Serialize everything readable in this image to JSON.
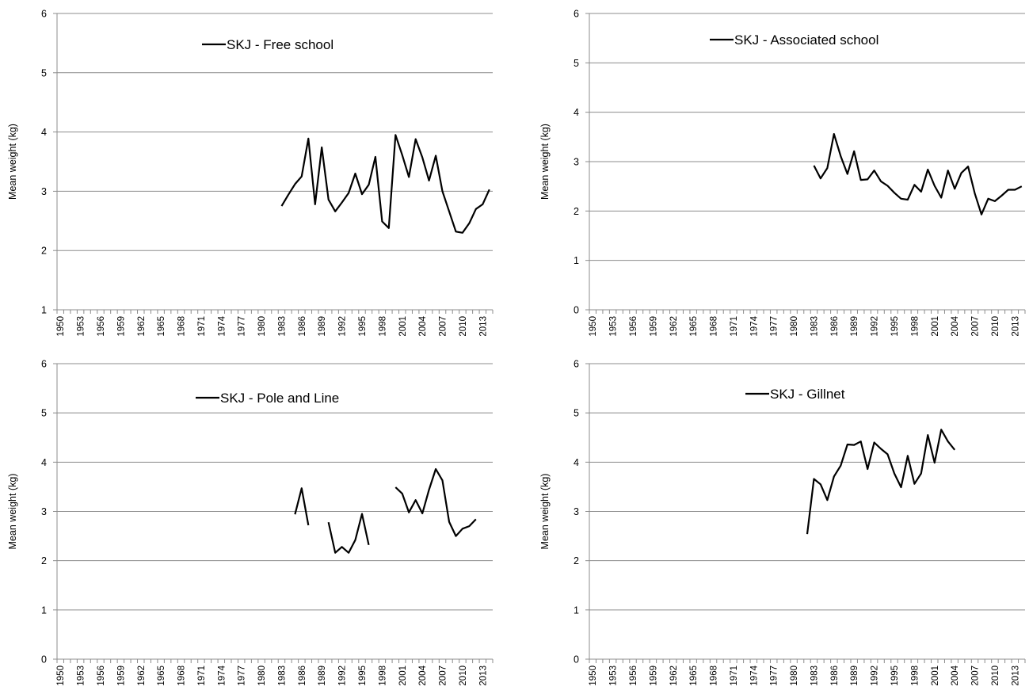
{
  "chart_data": [
    {
      "type": "line",
      "title": "",
      "xlabel": "",
      "ylabel": "Mean weight (kg)",
      "ylim": [
        1,
        6
      ],
      "yticks": [
        "1",
        "2",
        "3",
        "4",
        "5",
        "6"
      ],
      "xlim": [
        1950,
        2014
      ],
      "xticks": [
        "1950",
        "1953",
        "1956",
        "1959",
        "1962",
        "1965",
        "1968",
        "1971",
        "1974",
        "1977",
        "1980",
        "1983",
        "1986",
        "1989",
        "1992",
        "1995",
        "1998",
        "2001",
        "2004",
        "2007",
        "2010",
        "2013"
      ],
      "grid": "horizontal",
      "legend_position": "top-center",
      "line_color": "#000000",
      "series": [
        {
          "name": "SKJ - Free school",
          "x": [
            1983,
            1984,
            1985,
            1986,
            1987,
            1988,
            1989,
            1990,
            1991,
            1992,
            1993,
            1994,
            1995,
            1996,
            1997,
            1998,
            1999,
            2000,
            2001,
            2002,
            2003,
            2004,
            2005,
            2006,
            2007,
            2008,
            2009,
            2010,
            2011,
            2012,
            2013,
            2014
          ],
          "y": [
            2.75,
            2.94,
            3.12,
            3.25,
            3.89,
            2.78,
            3.74,
            2.86,
            2.66,
            2.81,
            2.97,
            3.3,
            2.95,
            3.11,
            3.58,
            2.49,
            2.38,
            3.95,
            3.61,
            3.24,
            3.88,
            3.57,
            3.18,
            3.6,
            3.0,
            2.66,
            2.32,
            2.3,
            2.46,
            2.7,
            2.78,
            3.03
          ]
        }
      ]
    },
    {
      "type": "line",
      "title": "",
      "xlabel": "",
      "ylabel": "Mean weight (kg)",
      "ylim": [
        0,
        6
      ],
      "yticks": [
        "0",
        "1",
        "2",
        "3",
        "4",
        "5",
        "6"
      ],
      "xlim": [
        1950,
        2014
      ],
      "xticks": [
        "1950",
        "1953",
        "1956",
        "1959",
        "1962",
        "1965",
        "1968",
        "1971",
        "1974",
        "1977",
        "1980",
        "1983",
        "1986",
        "1989",
        "1992",
        "1995",
        "1998",
        "2001",
        "2004",
        "2007",
        "2010",
        "2013"
      ],
      "grid": "horizontal",
      "legend_position": "top-center",
      "line_color": "#000000",
      "series": [
        {
          "name": "SKJ - Associated school",
          "x": [
            1983,
            1984,
            1985,
            1986,
            1987,
            1988,
            1989,
            1990,
            1991,
            1992,
            1993,
            1994,
            1995,
            1996,
            1997,
            1998,
            1999,
            2000,
            2001,
            2002,
            2003,
            2004,
            2005,
            2006,
            2007,
            2008,
            2009,
            2010,
            2011,
            2012,
            2013,
            2014
          ],
          "y": [
            2.92,
            2.66,
            2.87,
            3.56,
            3.11,
            2.75,
            3.21,
            2.63,
            2.64,
            2.82,
            2.6,
            2.51,
            2.37,
            2.25,
            2.23,
            2.53,
            2.39,
            2.84,
            2.51,
            2.27,
            2.82,
            2.45,
            2.77,
            2.9,
            2.36,
            1.93,
            2.25,
            2.2,
            2.31,
            2.43,
            2.43,
            2.5
          ]
        }
      ]
    },
    {
      "type": "line",
      "title": "",
      "xlabel": "",
      "ylabel": "Mean weight (kg)",
      "ylim": [
        0,
        6
      ],
      "yticks": [
        "0",
        "1",
        "2",
        "3",
        "4",
        "5",
        "6"
      ],
      "xlim": [
        1950,
        2014
      ],
      "xticks": [
        "1950",
        "1953",
        "1956",
        "1959",
        "1962",
        "1965",
        "1968",
        "1971",
        "1974",
        "1977",
        "1980",
        "1983",
        "1986",
        "1989",
        "1992",
        "1995",
        "1998",
        "2001",
        "2004",
        "2007",
        "2010",
        "2013"
      ],
      "grid": "horizontal",
      "legend_position": "top-center",
      "line_color": "#000000",
      "series": [
        {
          "name": "SKJ - Pole and Line",
          "x": [
            1983,
            1984,
            1985,
            1986,
            1987,
            1988,
            1989,
            1990,
            1991,
            1992,
            1993,
            1994,
            1995,
            1996,
            1997,
            1998,
            1999,
            2000,
            2001,
            2002,
            2003,
            2004,
            2005,
            2006,
            2007,
            2008,
            2009,
            2010,
            2011,
            2012
          ],
          "y": [
            null,
            null,
            2.94,
            3.47,
            2.72,
            null,
            null,
            2.78,
            2.16,
            2.28,
            2.16,
            2.42,
            2.95,
            2.32,
            null,
            null,
            null,
            3.49,
            3.36,
            2.98,
            3.23,
            2.96,
            3.44,
            3.86,
            3.63,
            2.79,
            2.5,
            2.65,
            2.7,
            2.84
          ]
        }
      ]
    },
    {
      "type": "line",
      "title": "",
      "xlabel": "",
      "ylabel": "Mean weight (kg)",
      "ylim": [
        0,
        6
      ],
      "yticks": [
        "0",
        "1",
        "2",
        "3",
        "4",
        "5",
        "6"
      ],
      "xlim": [
        1950,
        2014
      ],
      "xticks": [
        "1950",
        "1953",
        "1956",
        "1959",
        "1962",
        "1965",
        "1968",
        "1971",
        "1974",
        "1977",
        "1980",
        "1983",
        "1986",
        "1989",
        "1992",
        "1995",
        "1998",
        "2001",
        "2004",
        "2007",
        "2010",
        "2013"
      ],
      "grid": "horizontal",
      "legend_position": "top-center",
      "line_color": "#000000",
      "series": [
        {
          "name": "SKJ - Gillnet",
          "x": [
            1982,
            1983,
            1984,
            1985,
            1986,
            1987,
            1988,
            1989,
            1990,
            1991,
            1992,
            1993,
            1994,
            1995,
            1996,
            1997,
            1998,
            1999,
            2000,
            2001,
            2002,
            2003,
            2004
          ],
          "y": [
            2.54,
            3.66,
            3.55,
            3.23,
            3.71,
            3.93,
            4.36,
            4.35,
            4.42,
            3.86,
            4.4,
            4.27,
            4.16,
            3.77,
            3.49,
            4.13,
            3.56,
            3.77,
            4.55,
            3.99,
            4.66,
            4.42,
            4.25
          ]
        }
      ]
    }
  ]
}
